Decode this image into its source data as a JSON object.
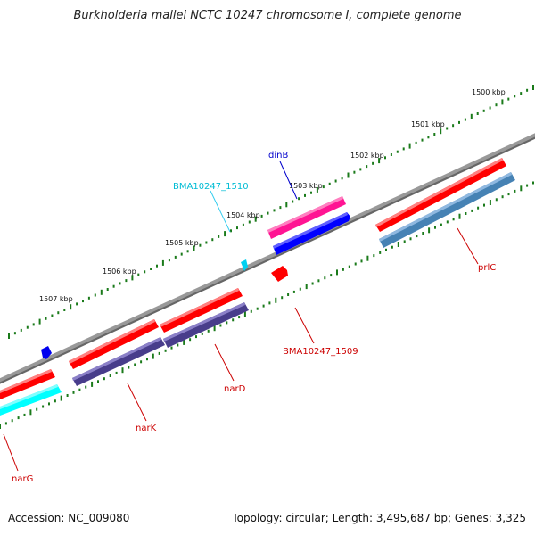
{
  "title": "Burkholderia mallei NCTC 10247 chromosome I, complete genome",
  "footer": {
    "accession": "Accession: NC_009080",
    "summary": "Topology: circular; Length: 3,495,687 bp; Genes: 3,325"
  },
  "colors": {
    "backbone": "#808080",
    "ticks": "#1a7a1a",
    "gene_red": "#ff0000",
    "gene_pink": "#ff1493",
    "gene_blue": "#0000ff",
    "gene_cyan": "#00e5ff",
    "gene_purple": "#483d8b",
    "gene_steel": "#4682b4"
  },
  "scale": {
    "labels": [
      "1500 kbp",
      "1501 kbp",
      "1502 kbp",
      "1503 kbp",
      "1504 kbp",
      "1505 kbp",
      "1506 kbp",
      "1507 kbp"
    ]
  },
  "genes": [
    {
      "id": "prlC",
      "label": "prlC",
      "color": "#ff0000",
      "label_color": "#cc0000"
    },
    {
      "id": "prlC-cds",
      "label": "",
      "color": "#4682b4"
    },
    {
      "id": "dinB",
      "label": "dinB",
      "color": "#ff1493",
      "label_color": "#0000cc"
    },
    {
      "id": "dinB-cds",
      "label": "",
      "color": "#0000ff"
    },
    {
      "id": "BMA10247_1509",
      "label": "BMA10247_1509",
      "color": "#ff0000",
      "label_color": "#cc0000"
    },
    {
      "id": "BMA10247_1510",
      "label": "BMA10247_1510",
      "color": "#00e5ff",
      "label_color": "#00bcd4"
    },
    {
      "id": "narD",
      "label": "narD",
      "color": "#ff0000",
      "label_color": "#cc0000"
    },
    {
      "id": "narD-cds",
      "label": "",
      "color": "#483d8b"
    },
    {
      "id": "narK",
      "label": "narK",
      "color": "#ff0000",
      "label_color": "#cc0000"
    },
    {
      "id": "narK-cds",
      "label": "",
      "color": "#483d8b"
    },
    {
      "id": "narG",
      "label": "narG",
      "color": "#ff0000",
      "label_color": "#cc0000"
    },
    {
      "id": "narG-cds",
      "label": "",
      "color": "#00ffff"
    },
    {
      "id": "small-blue",
      "label": "",
      "color": "#0000ff"
    }
  ]
}
